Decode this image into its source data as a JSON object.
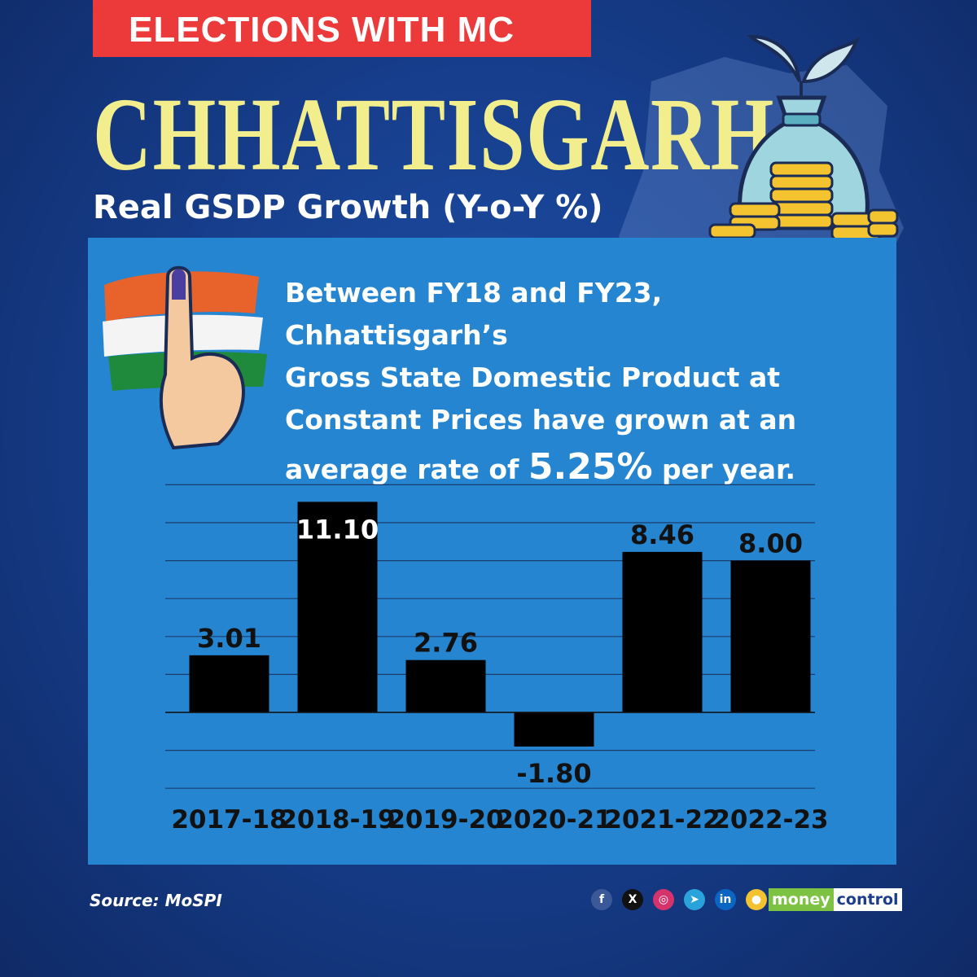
{
  "header": {
    "badge": "ELECTIONS WITH MC",
    "title": "CHHATTISGARH",
    "subtitle": "Real GSDP Growth (Y-o-Y %)"
  },
  "description": {
    "line1": "Between FY18 and FY23, Chhattisgarh’s",
    "line2": "Gross State Domestic Product at",
    "line3": "Constant Prices have grown at an",
    "line4_pre": "average rate of ",
    "highlight": "5.25%",
    "line4_post": " per year."
  },
  "chart_data": {
    "type": "bar",
    "categories": [
      "2017-18",
      "2018-19",
      "2019-20",
      "2020-21",
      "2021-22",
      "2022-23"
    ],
    "values": [
      3.01,
      11.1,
      2.76,
      -1.8,
      8.46,
      8.0
    ],
    "value_labels": [
      "3.01",
      "11.10",
      "2.76",
      "-1.80",
      "8.46",
      "8.00"
    ],
    "title": "",
    "xlabel": "",
    "ylabel": "",
    "ylim": [
      -4,
      12
    ],
    "grid": true,
    "bar_color": "#000000"
  },
  "footer": {
    "source": "Source: MoSPI",
    "brand_part1": "money",
    "brand_part2": "control",
    "social": [
      {
        "name": "facebook-icon",
        "glyph": "f",
        "color": "#3b5998"
      },
      {
        "name": "x-icon",
        "glyph": "X",
        "color": "#111111"
      },
      {
        "name": "instagram-icon",
        "glyph": "◎",
        "color": "#d6336c"
      },
      {
        "name": "telegram-icon",
        "glyph": "➤",
        "color": "#2aa3dd"
      },
      {
        "name": "linkedin-icon",
        "glyph": "in",
        "color": "#0a66c2"
      },
      {
        "name": "koo-icon",
        "glyph": "●",
        "color": "#f2c230"
      }
    ]
  },
  "colors": {
    "background": "#173f8e",
    "panel": "#2585d0",
    "badge": "#ec3a3a",
    "title": "#f2ee8e"
  }
}
